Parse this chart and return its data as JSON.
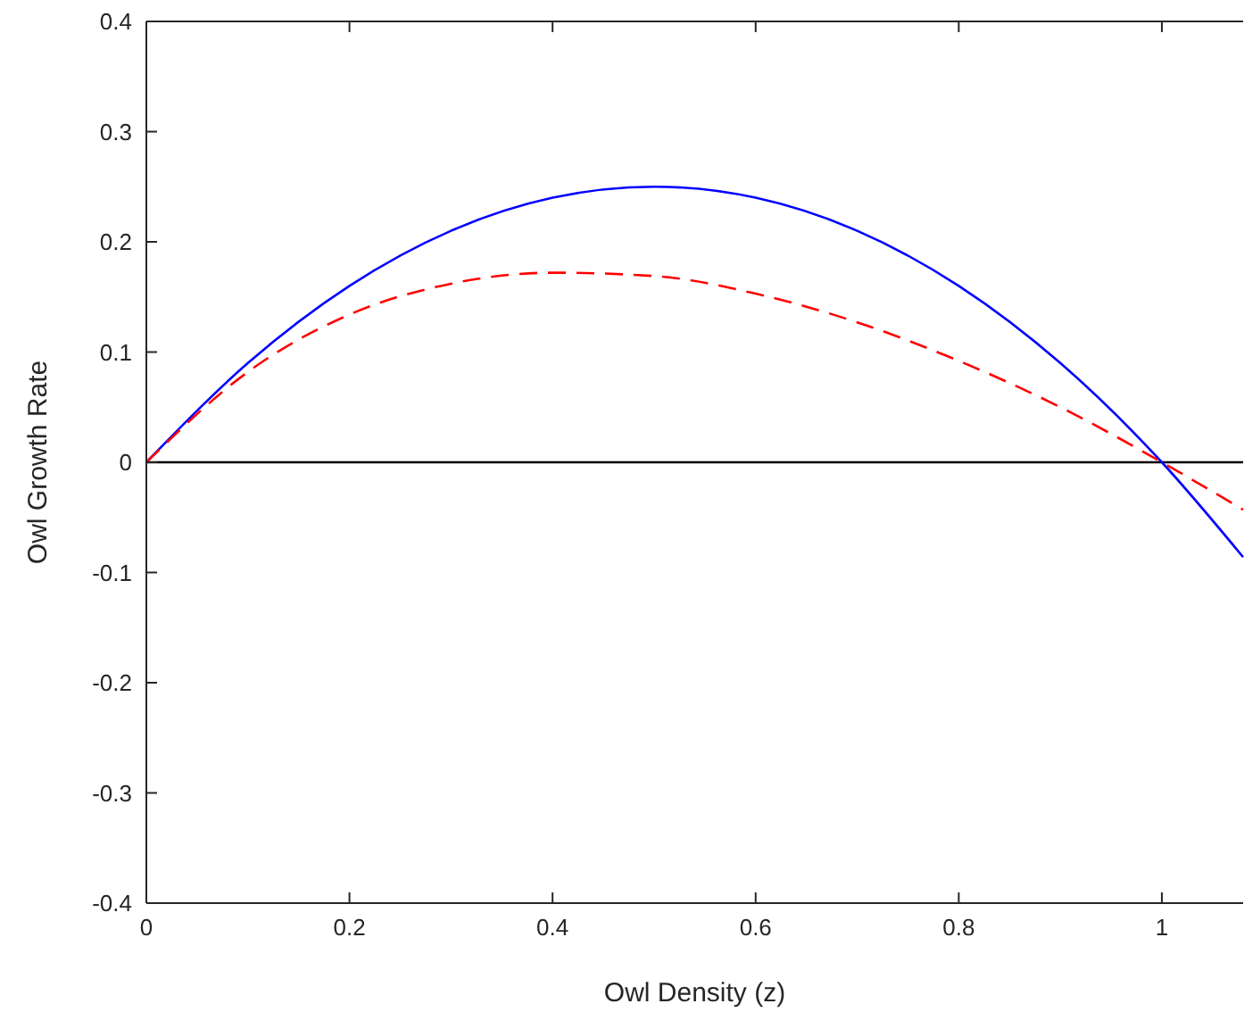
{
  "chart_data": {
    "type": "line",
    "xlabel": "Owl Density (z)",
    "ylabel": "Owl Growth Rate",
    "x": [
      0,
      0.1,
      0.2,
      0.3,
      0.4,
      0.5,
      0.6,
      0.7,
      0.8,
      0.9,
      1.0,
      1.08
    ],
    "series": [
      {
        "color": "#0000ff",
        "line_style": "solid",
        "values": [
          0,
          0.09,
          0.16,
          0.21,
          0.24,
          0.25,
          0.24,
          0.21,
          0.16,
          0.09,
          0,
          -0.086
        ]
      },
      {
        "color": "#ff0000",
        "line_style": "dashed",
        "values": [
          0,
          0.082,
          0.134,
          0.162,
          0.172,
          0.169,
          0.153,
          0.127,
          0.092,
          0.05,
          0,
          -0.043
        ]
      }
    ],
    "xlim": [
      0,
      1.08
    ],
    "ylim": [
      -0.4,
      0.4
    ],
    "xticks": [
      0,
      0.2,
      0.4,
      0.6,
      0.8,
      1
    ],
    "yticks": [
      -0.4,
      -0.3,
      -0.2,
      -0.1,
      0,
      0.1,
      0.2,
      0.3,
      0.4
    ],
    "ref_lines": [
      {
        "axis": "y",
        "value": 0,
        "color": "#000000"
      }
    ],
    "grid": false
  }
}
